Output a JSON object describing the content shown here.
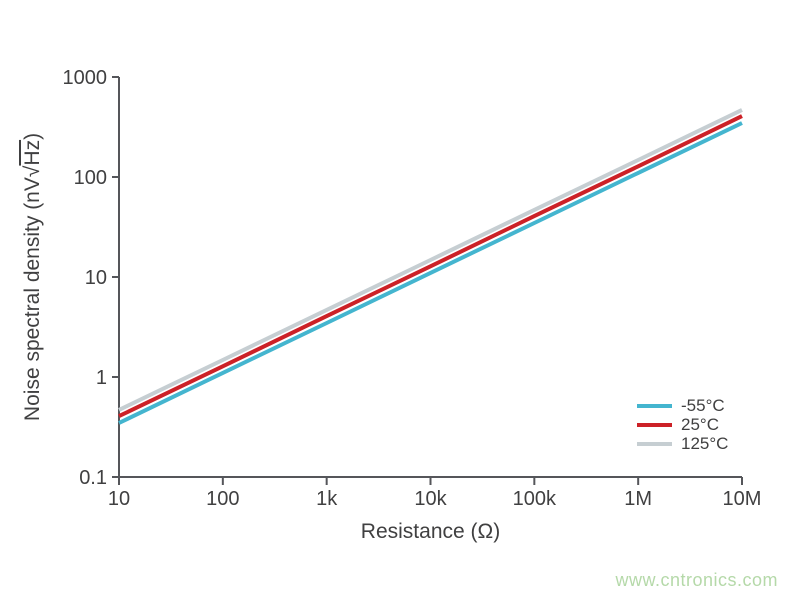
{
  "colors": {
    "axis": "#55565a",
    "text": "#404041",
    "watermark_green": "#b5d9a9",
    "background": "#ffffff"
  },
  "watermark": {
    "text": "www.cntronics.com"
  },
  "chart_data": {
    "type": "line",
    "title": "",
    "xlabel": "Resistance (Ω)",
    "ylabel": "Noise spectral density (nV√Hz)",
    "ylabel_parts": {
      "prefix": "Noise spectral density (nV√",
      "radicand": "Hz",
      "suffix": ")"
    },
    "x_scale": "log",
    "y_scale": "log",
    "xlim": [
      10,
      10000000
    ],
    "ylim": [
      0.1,
      1000
    ],
    "grid": false,
    "legend_position": "lower right",
    "x_ticks": [
      10,
      100,
      1000,
      10000,
      100000,
      1000000,
      10000000
    ],
    "x_tick_labels": [
      "10",
      "100",
      "1k",
      "10k",
      "100k",
      "1M",
      "10M"
    ],
    "y_ticks": [
      1000,
      100,
      10,
      1,
      0.1
    ],
    "y_tick_labels": [
      "1000",
      "100",
      "10",
      "1",
      "0.1"
    ],
    "x": [
      10,
      100,
      1000,
      10000,
      100000,
      1000000,
      10000000
    ],
    "series": [
      {
        "name": "-55°C",
        "color": "#44b5cf",
        "values": [
          0.347,
          1.1,
          3.47,
          11.0,
          34.7,
          110,
          347
        ]
      },
      {
        "name": "25°C",
        "color": "#cc2127",
        "values": [
          0.406,
          1.28,
          4.06,
          12.8,
          40.6,
          128,
          406
        ]
      },
      {
        "name": "125°C",
        "color": "#c6ced2",
        "values": [
          0.469,
          1.48,
          4.69,
          14.8,
          46.9,
          148,
          469
        ]
      }
    ]
  }
}
